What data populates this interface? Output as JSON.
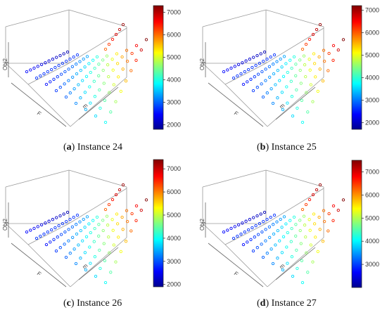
{
  "figure": {
    "panels": [
      {
        "caption_letter": "a",
        "caption_text": "Instance 24",
        "axis_labels": {
          "z": "Obj2",
          "x": "F",
          "y": "m"
        },
        "colorbar": {
          "ticks": [
            2000,
            3000,
            4000,
            5000,
            6000,
            7000
          ],
          "min": 1800,
          "max": 7300
        }
      },
      {
        "caption_letter": "b",
        "caption_text": "Instance 25",
        "axis_labels": {
          "z": "Obj2",
          "x": "F",
          "y": "m"
        },
        "colorbar": {
          "ticks": [
            2000,
            3000,
            4000,
            5000,
            6000,
            7000
          ],
          "min": 1700,
          "max": 7200
        }
      },
      {
        "caption_letter": "c",
        "caption_text": "Instance 26",
        "axis_labels": {
          "z": "Obj2",
          "x": "F",
          "y": "m"
        },
        "colorbar": {
          "ticks": [
            2000,
            3000,
            4000,
            5000,
            6000,
            7000
          ],
          "min": 1900,
          "max": 7400
        }
      },
      {
        "caption_letter": "d",
        "caption_text": "Instance 27",
        "axis_labels": {
          "z": "Obj2",
          "x": "F",
          "y": "m"
        },
        "colorbar": {
          "ticks": [
            3000,
            4000,
            5000,
            6000,
            7000
          ],
          "min": 2000,
          "max": 7500
        }
      }
    ]
  },
  "chart_data": [
    {
      "type": "scatter",
      "caption": "(a) Instance 24",
      "zlabel": "Obj2",
      "xlabel": "F",
      "ylabel": "m",
      "colorbar_range": [
        1800,
        7300
      ],
      "colorbar_ticks": [
        2000,
        3000,
        4000,
        5000,
        6000,
        7000
      ]
    },
    {
      "type": "scatter",
      "caption": "(b) Instance 25",
      "zlabel": "Obj2",
      "xlabel": "F",
      "ylabel": "m",
      "colorbar_range": [
        1700,
        7200
      ],
      "colorbar_ticks": [
        2000,
        3000,
        4000,
        5000,
        6000,
        7000
      ]
    },
    {
      "type": "scatter",
      "caption": "(c) Instance 26",
      "zlabel": "Obj2",
      "xlabel": "F",
      "ylabel": "m",
      "colorbar_range": [
        1900,
        7400
      ],
      "colorbar_ticks": [
        2000,
        3000,
        4000,
        5000,
        6000,
        7000
      ]
    },
    {
      "type": "scatter",
      "caption": "(d) Instance 27",
      "zlabel": "Obj2",
      "xlabel": "F",
      "ylabel": "m",
      "colorbar_range": [
        2000,
        7500
      ],
      "colorbar_ticks": [
        3000,
        4000,
        5000,
        6000,
        7000
      ]
    }
  ]
}
